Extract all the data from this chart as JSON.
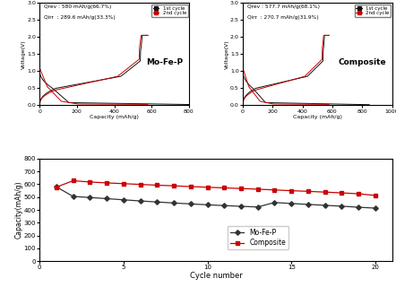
{
  "plot1": {
    "title": "Mo-Fe-P",
    "annotation_line1": "Qrev : 580 mAh/g(66.7%)",
    "annotation_line2": "Qirr  : 289.6 mAh/g(33.3%)",
    "xlabel": "Capacity (mAh/g)",
    "ylabel": "Voltage(V)",
    "xlim": [
      0,
      800
    ],
    "ylim": [
      0,
      3.0
    ],
    "xticks": [
      0,
      200,
      400,
      600,
      800
    ],
    "yticks": [
      0.0,
      0.5,
      1.0,
      1.5,
      2.0,
      2.5,
      3.0
    ],
    "total_cap_1st": 870,
    "rev_cap": 580
  },
  "plot2": {
    "title": "Composite",
    "annotation_line1": "Qrev : 577.7 mAh/g(68.1%)",
    "annotation_line2": "Qirr  : 270.7 mAh/g(31.9%)",
    "xlabel": "Capacity (mAh/g)",
    "ylabel": "Voltage(V)",
    "xlim": [
      0,
      1000
    ],
    "ylim": [
      0,
      3.0
    ],
    "xticks": [
      0,
      200,
      400,
      600,
      800,
      1000
    ],
    "yticks": [
      0.0,
      0.5,
      1.0,
      1.5,
      2.0,
      2.5,
      3.0
    ],
    "total_cap_1st": 848,
    "rev_cap": 578
  },
  "plot3": {
    "xlabel": "Cycle number",
    "ylabel": "Capacity(mAh/g)",
    "xlim": [
      1,
      20
    ],
    "ylim": [
      0,
      800
    ],
    "xticks": [
      0,
      5,
      10,
      15,
      20
    ],
    "yticks": [
      0,
      100,
      200,
      300,
      400,
      500,
      600,
      700,
      800
    ],
    "mofep_label": "Mo-Fe-P",
    "composite_label": "Composite",
    "mofep_color": "#333333",
    "composite_color": "#cc0000",
    "mofep_data": [
      580,
      505,
      497,
      488,
      479,
      470,
      462,
      454,
      447,
      440,
      434,
      428,
      423,
      458,
      450,
      443,
      436,
      429,
      421,
      414
    ],
    "composite_data": [
      578,
      628,
      618,
      611,
      605,
      599,
      593,
      588,
      582,
      577,
      572,
      567,
      562,
      556,
      550,
      545,
      539,
      533,
      526,
      513
    ]
  },
  "legend1_entries": [
    "1st cycle",
    "2nd cycle"
  ],
  "color_black": "#111111",
  "color_red": "#cc0000"
}
